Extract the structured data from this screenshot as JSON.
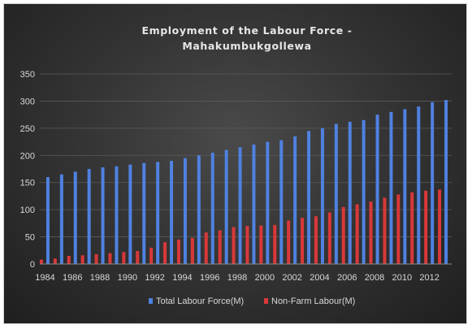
{
  "chart_data": {
    "type": "bar",
    "title": [
      "Employment  of the Labour Force -",
      "Mahakumbukgollewa"
    ],
    "xlabel": "",
    "ylabel": "",
    "ylim": [
      0,
      350
    ],
    "yticks": [
      0,
      50,
      100,
      150,
      200,
      250,
      300,
      350
    ],
    "grid": true,
    "legend_position": "bottom",
    "categories": [
      "1984",
      "1985",
      "1986",
      "1987",
      "1988",
      "1989",
      "1990",
      "1991",
      "1992",
      "1993",
      "1994",
      "1995",
      "1996",
      "1997",
      "1998",
      "1999",
      "2000",
      "2001",
      "2002",
      "2003",
      "2004",
      "2005",
      "2006",
      "2007",
      "2008",
      "2009",
      "2010",
      "2011",
      "2012",
      "2013"
    ],
    "xtick_labels": [
      "1984",
      "1986",
      "1988",
      "1990",
      "1992",
      "1994",
      "1996",
      "1998",
      "2000",
      "2002",
      "2004",
      "2006",
      "2008",
      "2010",
      "2012"
    ],
    "series": [
      {
        "name": "Total Labour Force(M)",
        "color": "#4f81e0",
        "values": [
          160,
          165,
          170,
          175,
          178,
          180,
          183,
          186,
          188,
          190,
          195,
          200,
          205,
          210,
          215,
          220,
          225,
          228,
          235,
          245,
          250,
          258,
          262,
          265,
          275,
          280,
          285,
          290,
          298,
          302
        ]
      },
      {
        "name": "Non-Farm Labour(M)",
        "color": "#d9383a",
        "values": [
          8,
          10,
          15,
          16,
          18,
          20,
          22,
          24,
          30,
          40,
          45,
          48,
          58,
          62,
          68,
          70,
          71,
          72,
          80,
          85,
          88,
          95,
          105,
          110,
          115,
          122,
          128,
          132,
          135,
          137
        ]
      }
    ]
  }
}
